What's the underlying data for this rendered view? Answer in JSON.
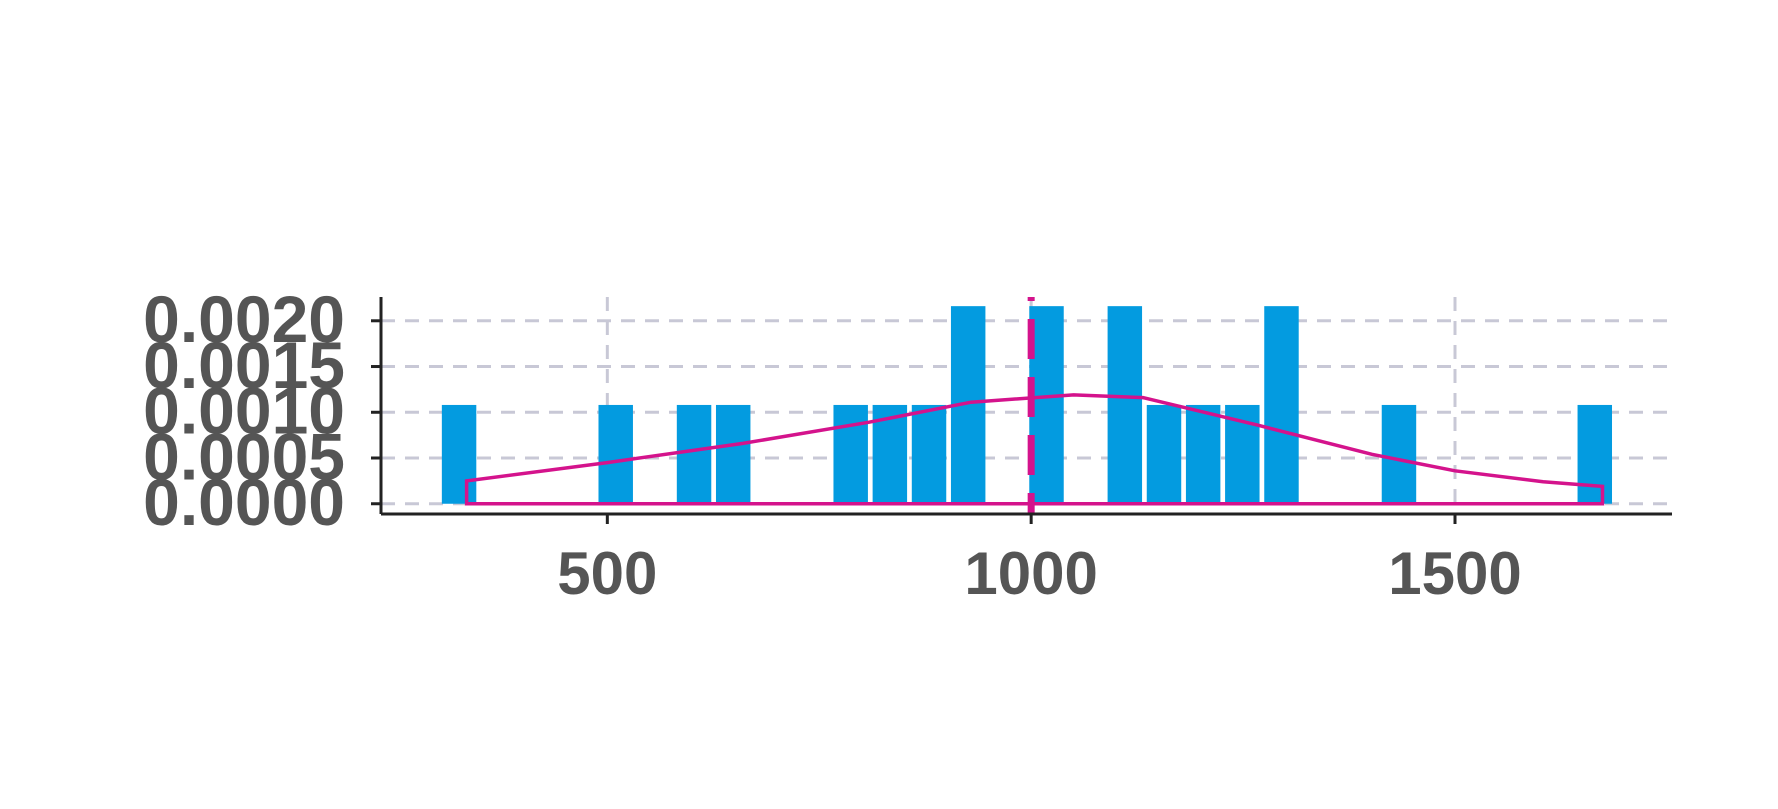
{
  "chart_data": {
    "type": "histogram",
    "bins": [
      302,
      348.2,
      394.4,
      440.6,
      486.8,
      533,
      579.2,
      625.4,
      671.6,
      717.8,
      764,
      810.2,
      856.4,
      902.6,
      948.8,
      995,
      1041.2,
      1087.4,
      1133.6,
      1179.8,
      1226,
      1272.2,
      1318.4,
      1364.6,
      1410.8,
      1457,
      1503.2,
      1549.4,
      1595.6,
      1641.8,
      1688
    ],
    "values": [
      0.00108,
      0,
      0,
      0,
      0.00108,
      0,
      0.00108,
      0.00108,
      0,
      0,
      0.00108,
      0.00108,
      0.00108,
      0.00216,
      0,
      0.00216,
      0,
      0.00216,
      0.00108,
      0.00108,
      0.00108,
      0.00216,
      0,
      0,
      0.00108,
      0,
      0,
      0,
      0,
      0.00108
    ],
    "color": "#039be0",
    "density": {
      "color": "#d4138c",
      "x": [
        334,
        500,
        660,
        808,
        929,
        1050,
        1132,
        1267,
        1402,
        1500,
        1604,
        1674
      ],
      "values": [
        0.00025,
        0.00045,
        0.00066,
        0.00089,
        0.00111,
        0.00119,
        0.00116,
        0.00086,
        0.00054,
        0.00036,
        0.00024,
        0.00019
      ]
    },
    "vlines": [
      1000
    ],
    "xlim": [
      233,
      1756
    ],
    "xticks": [
      500,
      1000,
      1500
    ],
    "ylim": [
      -0.000112,
      0.00226
    ],
    "yticks": [
      {
        "value": 0,
        "label": "0.0000"
      },
      {
        "value": 0.0005,
        "label": "0.0005"
      },
      {
        "value": 0.001,
        "label": "0.0010"
      },
      {
        "value": 0.0015,
        "label": "0.0015"
      },
      {
        "value": 0.002,
        "label": "0.0020"
      }
    ],
    "grid": true
  }
}
